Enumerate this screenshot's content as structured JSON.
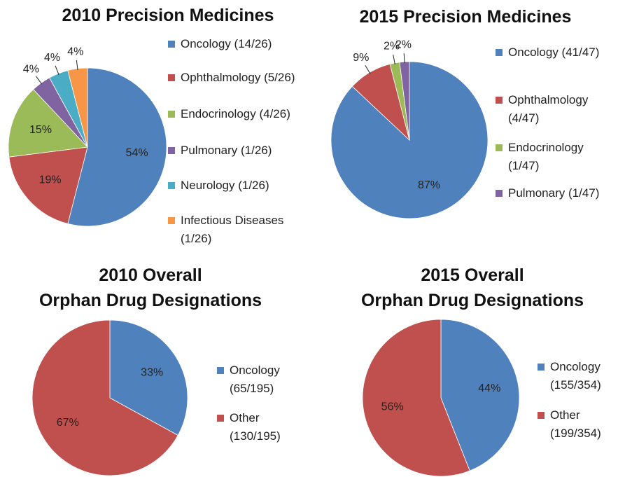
{
  "chart_data": [
    {
      "type": "pie",
      "title": "2010 Precision Medicines",
      "categories": [
        "Oncology (14/26)",
        "Ophthalmology (5/26)",
        "Endocrinology (4/26)",
        "Pulmonary (1/26)",
        "Neurology (1/26)",
        "Infectious Diseases (1/26)"
      ],
      "values": [
        54,
        19,
        15,
        4,
        4,
        4
      ],
      "value_labels": [
        "54%",
        "19%",
        "15%",
        "4%",
        "4%",
        "4%"
      ],
      "colors": [
        "#4f81bd",
        "#c0504d",
        "#9bbb59",
        "#8064a2",
        "#4bacc6",
        "#f79646"
      ]
    },
    {
      "type": "pie",
      "title": "2015 Precision Medicines",
      "categories": [
        "Oncology (41/47)",
        "Ophthalmology (4/47)",
        "Endocrinology (1/47)",
        "Pulmonary (1/47)"
      ],
      "values": [
        87,
        9,
        2,
        2
      ],
      "value_labels": [
        "87%",
        "9%",
        "2%",
        "2%"
      ],
      "colors": [
        "#4f81bd",
        "#c0504d",
        "#9bbb59",
        "#8064a2"
      ]
    },
    {
      "type": "pie",
      "title": "2010 Overall\nOrphan Drug Designations",
      "categories": [
        "Oncology (65/195)",
        "Other (130/195)"
      ],
      "values": [
        33,
        67
      ],
      "value_labels": [
        "33%",
        "67%"
      ],
      "colors": [
        "#4f81bd",
        "#c0504d"
      ]
    },
    {
      "type": "pie",
      "title": "2015 Overall\nOrphan Drug Designations",
      "categories": [
        "Oncology (155/354)",
        "Other (199/354)"
      ],
      "values": [
        44,
        56
      ],
      "value_labels": [
        "44%",
        "56%"
      ],
      "colors": [
        "#4f81bd",
        "#c0504d"
      ]
    }
  ]
}
